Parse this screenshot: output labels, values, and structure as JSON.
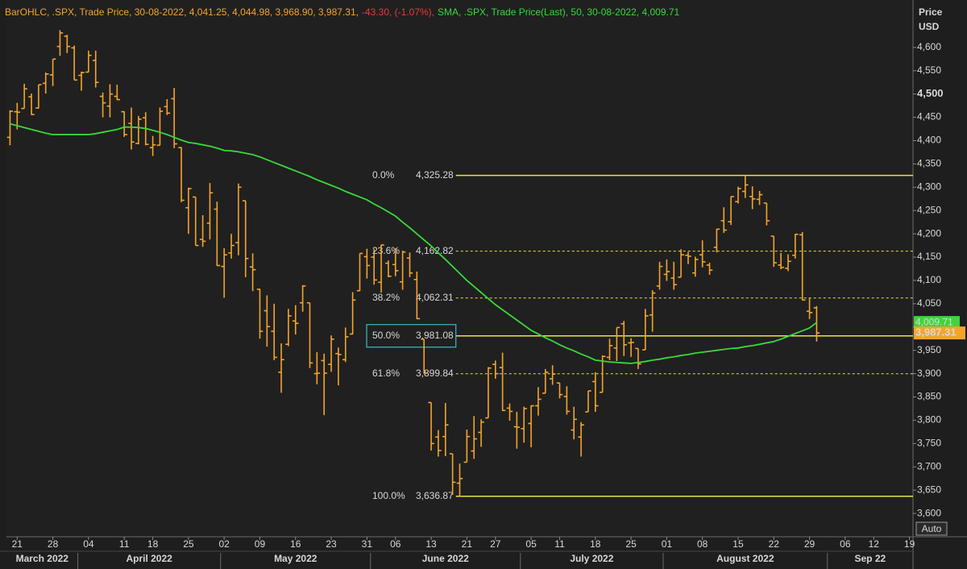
{
  "chart_data": {
    "type": "ohlc",
    "header": {
      "ohlc": "BarOHLC, .SPX, Trade Price, 30-08-2022, 4,041.25, 4,044.98, 3,968.90, 3,987.31,",
      "change": "-43.30, (-1.07%),",
      "sma": "SMA, .SPX, Trade Price(Last), 50, 30-08-2022, 4,009.71"
    },
    "color": "#f5a52a",
    "down_color": "#e83a3a",
    "axis_title": [
      "Price",
      "USD"
    ],
    "auto_button": "Auto",
    "months": [
      "March 2022",
      "April 2022",
      "May 2022",
      "June 2022",
      "July 2022",
      "August 2022",
      "Sep 22"
    ],
    "x": [
      "2022-03-18",
      "2022-03-21",
      "2022-03-22",
      "2022-03-23",
      "2022-03-24",
      "2022-03-25",
      "2022-03-28",
      "2022-03-29",
      "2022-03-30",
      "2022-03-31",
      "2022-04-01",
      "2022-04-04",
      "2022-04-05",
      "2022-04-06",
      "2022-04-07",
      "2022-04-08",
      "2022-04-11",
      "2022-04-12",
      "2022-04-13",
      "2022-04-14",
      "2022-04-18",
      "2022-04-19",
      "2022-04-20",
      "2022-04-21",
      "2022-04-22",
      "2022-04-25",
      "2022-04-26",
      "2022-04-27",
      "2022-04-28",
      "2022-04-29",
      "2022-05-02",
      "2022-05-03",
      "2022-05-04",
      "2022-05-05",
      "2022-05-06",
      "2022-05-09",
      "2022-05-10",
      "2022-05-11",
      "2022-05-12",
      "2022-05-13",
      "2022-05-16",
      "2022-05-17",
      "2022-05-18",
      "2022-05-19",
      "2022-05-20",
      "2022-05-23",
      "2022-05-24",
      "2022-05-25",
      "2022-05-26",
      "2022-05-27",
      "2022-05-31",
      "2022-06-01",
      "2022-06-02",
      "2022-06-03",
      "2022-06-06",
      "2022-06-07",
      "2022-06-08",
      "2022-06-09",
      "2022-06-10",
      "2022-06-13",
      "2022-06-14",
      "2022-06-15",
      "2022-06-16",
      "2022-06-17",
      "2022-06-21",
      "2022-06-22",
      "2022-06-23",
      "2022-06-24",
      "2022-06-27",
      "2022-06-28",
      "2022-06-29",
      "2022-06-30",
      "2022-07-01",
      "2022-07-05",
      "2022-07-06",
      "2022-07-07",
      "2022-07-08",
      "2022-07-11",
      "2022-07-12",
      "2022-07-13",
      "2022-07-14",
      "2022-07-15",
      "2022-07-18",
      "2022-07-19",
      "2022-07-20",
      "2022-07-21",
      "2022-07-22",
      "2022-07-25",
      "2022-07-26",
      "2022-07-27",
      "2022-07-28",
      "2022-07-29",
      "2022-08-01",
      "2022-08-02",
      "2022-08-03",
      "2022-08-04",
      "2022-08-05",
      "2022-08-08",
      "2022-08-09",
      "2022-08-10",
      "2022-08-11",
      "2022-08-12",
      "2022-08-15",
      "2022-08-16",
      "2022-08-17",
      "2022-08-18",
      "2022-08-19",
      "2022-08-22",
      "2022-08-23",
      "2022-08-24",
      "2022-08-25",
      "2022-08-26",
      "2022-08-29",
      "2022-08-30",
      "2022-08-31",
      "2022-09-01",
      "2022-09-02",
      "2022-09-06",
      "2022-09-07",
      "2022-09-08",
      "2022-09-09",
      "2022-09-12",
      "2022-09-13",
      "2022-09-14",
      "2022-09-15",
      "2022-09-16",
      "2022-09-19"
    ],
    "open": [
      4407,
      4462,
      4469,
      4494,
      4470,
      4523,
      4541,
      4602,
      4624,
      4599,
      4540,
      4547,
      4572,
      4495,
      4474,
      4495,
      4462,
      4437,
      4394,
      4449,
      4385,
      4390,
      4473,
      4490,
      4385,
      4256,
      4279,
      4188,
      4223,
      4253,
      4130,
      4159,
      4181,
      4271,
      4129,
      4081,
      4035,
      3991,
      3903,
      3963,
      4013,
      4052,
      4052,
      3900,
      3928,
      3920,
      3943,
      3930,
      3985,
      4078,
      4151,
      4150,
      4096,
      4137,
      4134,
      4097,
      4148,
      4102,
      3974,
      3838,
      3764,
      3765,
      3728,
      3665,
      3710,
      3734,
      3774,
      3805,
      3920,
      3913,
      3826,
      3786,
      3782,
      3793,
      3831,
      3858,
      3889,
      3880,
      3851,
      3779,
      3764,
      3818,
      3883,
      3860,
      3935,
      3955,
      4007,
      3966,
      3954,
      3951,
      4026,
      4088,
      4113,
      4105,
      4107,
      4154,
      4116,
      4155,
      4133,
      4171,
      4228,
      4226,
      4269,
      4291,
      4280,
      4274,
      4266,
      4195,
      4133,
      4126,
      4154,
      4198,
      4034,
      4041.25,
      null,
      null,
      null,
      null,
      null,
      null,
      null,
      null,
      null,
      null,
      null,
      null,
      null
    ],
    "high": [
      4465,
      4481,
      4522,
      4501,
      4520,
      4546,
      4575,
      4637,
      4627,
      4604,
      4548,
      4593,
      4593,
      4503,
      4521,
      4520,
      4463,
      4471,
      4453,
      4461,
      4410,
      4471,
      4489,
      4513,
      4386,
      4299,
      4279,
      4240,
      4309,
      4269,
      4169,
      4200,
      4308,
      4271,
      4158,
      4082,
      4068,
      4050,
      3965,
      4039,
      4047,
      4090,
      4052,
      3946,
      3943,
      3982,
      3956,
      3999,
      4075,
      4158,
      4168,
      4167,
      4177,
      4143,
      4169,
      4164,
      4160,
      4119,
      3974,
      3838,
      3779,
      3837,
      3728,
      3707,
      3780,
      3809,
      3802,
      3914,
      3928,
      3945,
      3836,
      3818,
      3829,
      3832,
      3871,
      3910,
      3918,
      3880,
      3873,
      3829,
      3796,
      3863,
      3903,
      3939,
      3975,
      3999,
      4013,
      3976,
      3954,
      4039,
      4079,
      4140,
      4145,
      4140,
      4167,
      4161,
      4151,
      4186,
      4138,
      4211,
      4257,
      4280,
      4301,
      4325.28,
      4302,
      4292,
      4266,
      4195,
      4159,
      4156,
      4200,
      4204,
      4062,
      4044.98,
      null,
      null,
      null,
      null,
      null,
      null,
      null,
      null,
      null,
      null,
      null,
      null,
      null
    ],
    "low": [
      4390,
      4424,
      4469,
      4455,
      4469,
      4501,
      4517,
      4582,
      4588,
      4530,
      4507,
      4547,
      4514,
      4450,
      4450,
      4487,
      4408,
      4381,
      4392,
      4390,
      4367,
      4390,
      4455,
      4384,
      4268,
      4200,
      4175,
      4172,
      4188,
      4131,
      4063,
      4147,
      4154,
      4107,
      4077,
      3975,
      3958,
      3929,
      3859,
      3959,
      3984,
      4033,
      3912,
      3877,
      3811,
      3904,
      3875,
      3925,
      3984,
      4077,
      4104,
      4091,
      4074,
      4107,
      4109,
      4080,
      4107,
      4017,
      3900,
      3735,
      3722,
      3723,
      3640,
      3636.87,
      3710,
      3717,
      3743,
      3805,
      3889,
      3820,
      3799,
      3739,
      3752,
      3742,
      3810,
      3858,
      3876,
      3847,
      3812,
      3759,
      3722,
      3818,
      3818,
      3860,
      3929,
      3927,
      3938,
      3936,
      3910,
      3951,
      3990,
      4080,
      4099,
      4080,
      4107,
      4135,
      4108,
      4128,
      4112,
      4160,
      4202,
      4219,
      4265,
      4277,
      4253,
      4262,
      4218,
      4129,
      4124,
      4120,
      4147,
      4057,
      4017,
      3968.9,
      null,
      null,
      null,
      null,
      null,
      null,
      null,
      null,
      null,
      null,
      null,
      null,
      null
    ],
    "close": [
      4463,
      4461,
      4511,
      4456,
      4520,
      4543,
      4575,
      4631,
      4602,
      4530,
      4546,
      4583,
      4525,
      4481,
      4500,
      4488,
      4413,
      4397,
      4446,
      4392,
      4391,
      4463,
      4459,
      4393,
      4272,
      4297,
      4175,
      4184,
      4288,
      4132,
      4155,
      4175,
      4300,
      4147,
      4123,
      3991,
      4001,
      3935,
      3930,
      4024,
      4008,
      4088,
      3923,
      3901,
      3901,
      3974,
      3941,
      3979,
      4058,
      4158,
      4132,
      4101,
      4176,
      4109,
      4121,
      4161,
      4116,
      4018,
      3901,
      3750,
      3735,
      3790,
      3667,
      3675,
      3765,
      3760,
      3796,
      3912,
      3900,
      3821,
      3819,
      3785,
      3825,
      3831,
      3845,
      3903,
      3899,
      3855,
      3819,
      3802,
      3790,
      3863,
      3831,
      3937,
      3960,
      3999,
      3962,
      3967,
      3921,
      4024,
      4073,
      4130,
      4119,
      4091,
      4155,
      4152,
      4145,
      4140,
      4122,
      4210,
      4208,
      4280,
      4297,
      4305,
      4275,
      4284,
      4228,
      4138,
      4128,
      4141,
      4199,
      4058,
      4031,
      3987.31,
      null,
      null,
      null,
      null,
      null,
      null,
      null,
      null,
      null,
      null,
      null,
      null,
      null
    ],
    "last_close_label": "3,987.31",
    "sma": {
      "color": "#39d83a",
      "last_label": "4,009.71",
      "values": [
        4436,
        4432,
        4428,
        4424,
        4420,
        4416,
        4413,
        4413,
        4413,
        4413,
        4413,
        4413,
        4415,
        4418,
        4421,
        4424,
        4429,
        4429,
        4428,
        4426,
        4422,
        4418,
        4413,
        4407,
        4401,
        4396,
        4394,
        4391,
        4388,
        4384,
        4379,
        4378,
        4376,
        4373,
        4370,
        4365,
        4359,
        4353,
        4347,
        4341,
        4335,
        4329,
        4323,
        4316,
        4310,
        4304,
        4298,
        4291,
        4285,
        4279,
        4273,
        4264,
        4256,
        4247,
        4238,
        4225,
        4213,
        4200,
        4187,
        4174,
        4159,
        4145,
        4130,
        4115,
        4100,
        4087,
        4074,
        4061,
        4048,
        4037,
        4026,
        4015,
        4004,
        3993,
        3985,
        3977,
        3970,
        3962,
        3955,
        3949,
        3942,
        3936,
        3929,
        3927,
        3925,
        3924,
        3923,
        3922,
        3924,
        3926,
        3929,
        3931,
        3934,
        3936,
        3939,
        3941,
        3944,
        3946,
        3948,
        3950,
        3952,
        3954,
        3955,
        3958,
        3960,
        3963,
        3966,
        3969,
        3974,
        3980,
        3986,
        3992,
        3998,
        4009.71,
        null,
        null,
        null,
        null,
        null,
        null,
        null,
        null,
        null,
        null,
        null,
        null,
        null
      ]
    },
    "fib": {
      "color": "#e6e34a",
      "levels": [
        {
          "label": "0.0%",
          "value": 4325.28,
          "value_label": "4,325.28",
          "style": "solid"
        },
        {
          "label": "23.6%",
          "value": 4162.82,
          "value_label": "4,162.82",
          "style": "dashed"
        },
        {
          "label": "38.2%",
          "value": 4062.31,
          "value_label": "4,062.31",
          "style": "dashed"
        },
        {
          "label": "50.0%",
          "value": 3981.08,
          "value_label": "3,981.08",
          "style": "solid",
          "highlight": true
        },
        {
          "label": "61.8%",
          "value": 3899.84,
          "value_label": "3,899.84",
          "style": "dashed"
        },
        {
          "label": "100.0%",
          "value": 3636.87,
          "value_label": "3,636.87",
          "style": "solid"
        }
      ]
    },
    "ylim": [
      3550,
      4700
    ],
    "yticks": [
      {
        "value": 3600,
        "label": "3,600"
      },
      {
        "value": 3650,
        "label": "3,650"
      },
      {
        "value": 3700,
        "label": "3,700"
      },
      {
        "value": 3750,
        "label": "3,750"
      },
      {
        "value": 3800,
        "label": "3,800"
      },
      {
        "value": 3850,
        "label": "3,850"
      },
      {
        "value": 3900,
        "label": "3,900"
      },
      {
        "value": 3950,
        "label": "3,950"
      },
      {
        "value": 4000,
        "label": "4,000"
      },
      {
        "value": 4050,
        "label": "4,050"
      },
      {
        "value": 4100,
        "label": "4,100"
      },
      {
        "value": 4150,
        "label": "4,150"
      },
      {
        "value": 4200,
        "label": "4,200"
      },
      {
        "value": 4250,
        "label": "4,250"
      },
      {
        "value": 4300,
        "label": "4,300"
      },
      {
        "value": 4350,
        "label": "4,350"
      },
      {
        "value": 4400,
        "label": "4,400"
      },
      {
        "value": 4450,
        "label": "4,450"
      },
      {
        "value": 4500,
        "label": "4,500",
        "bold": true
      },
      {
        "value": 4550,
        "label": "4,550"
      },
      {
        "value": 4600,
        "label": "4,600"
      }
    ],
    "xticks": [
      {
        "value": "2022-03-21",
        "label": "21"
      },
      {
        "value": "2022-03-28",
        "label": "28"
      },
      {
        "value": "2022-04-04",
        "label": "04"
      },
      {
        "value": "2022-04-11",
        "label": "11"
      },
      {
        "value": "2022-04-18",
        "label": "18"
      },
      {
        "value": "2022-04-25",
        "label": "25"
      },
      {
        "value": "2022-05-02",
        "label": "02"
      },
      {
        "value": "2022-05-09",
        "label": "09"
      },
      {
        "value": "2022-05-16",
        "label": "16"
      },
      {
        "value": "2022-05-23",
        "label": "23"
      },
      {
        "value": "2022-05-31",
        "label": "31"
      },
      {
        "value": "2022-06-06",
        "label": "06"
      },
      {
        "value": "2022-06-13",
        "label": "13"
      },
      {
        "value": "2022-06-21",
        "label": "21"
      },
      {
        "value": "2022-06-27",
        "label": "27"
      },
      {
        "value": "2022-07-05",
        "label": "05"
      },
      {
        "value": "2022-07-11",
        "label": "11"
      },
      {
        "value": "2022-07-18",
        "label": "18"
      },
      {
        "value": "2022-07-25",
        "label": "25"
      },
      {
        "value": "2022-08-01",
        "label": "01"
      },
      {
        "value": "2022-08-08",
        "label": "08"
      },
      {
        "value": "2022-08-15",
        "label": "15"
      },
      {
        "value": "2022-08-22",
        "label": "22"
      },
      {
        "value": "2022-08-29",
        "label": "29"
      },
      {
        "value": "2022-09-06",
        "label": "06"
      },
      {
        "value": "2022-09-12",
        "label": "12"
      },
      {
        "value": "2022-09-19",
        "label": "19"
      }
    ]
  }
}
